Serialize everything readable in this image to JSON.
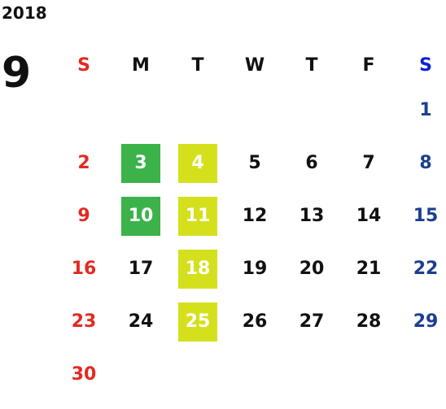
{
  "year": "2018",
  "month": "9",
  "weekdays": [
    "S",
    "M",
    "T",
    "W",
    "T",
    "F",
    "S"
  ],
  "colors": {
    "sunday": "#e32a23",
    "saturday": "#1b3f8f",
    "saturday_header": "#0a1fd8",
    "green": "#3bb34a",
    "yellow": "#d4e01c"
  },
  "weeks": [
    [
      "",
      "",
      "",
      "",
      "",
      "",
      "1"
    ],
    [
      "2",
      "3",
      "4",
      "5",
      "6",
      "7",
      "8"
    ],
    [
      "9",
      "10",
      "11",
      "12",
      "13",
      "14",
      "15"
    ],
    [
      "16",
      "17",
      "18",
      "19",
      "20",
      "21",
      "22"
    ],
    [
      "23",
      "24",
      "25",
      "26",
      "27",
      "28",
      "29"
    ],
    [
      "30",
      "",
      "",
      "",
      "",
      "",
      ""
    ]
  ],
  "highlights": {
    "green": [
      "3",
      "10"
    ],
    "yellow": [
      "4",
      "11",
      "18",
      "25"
    ]
  }
}
